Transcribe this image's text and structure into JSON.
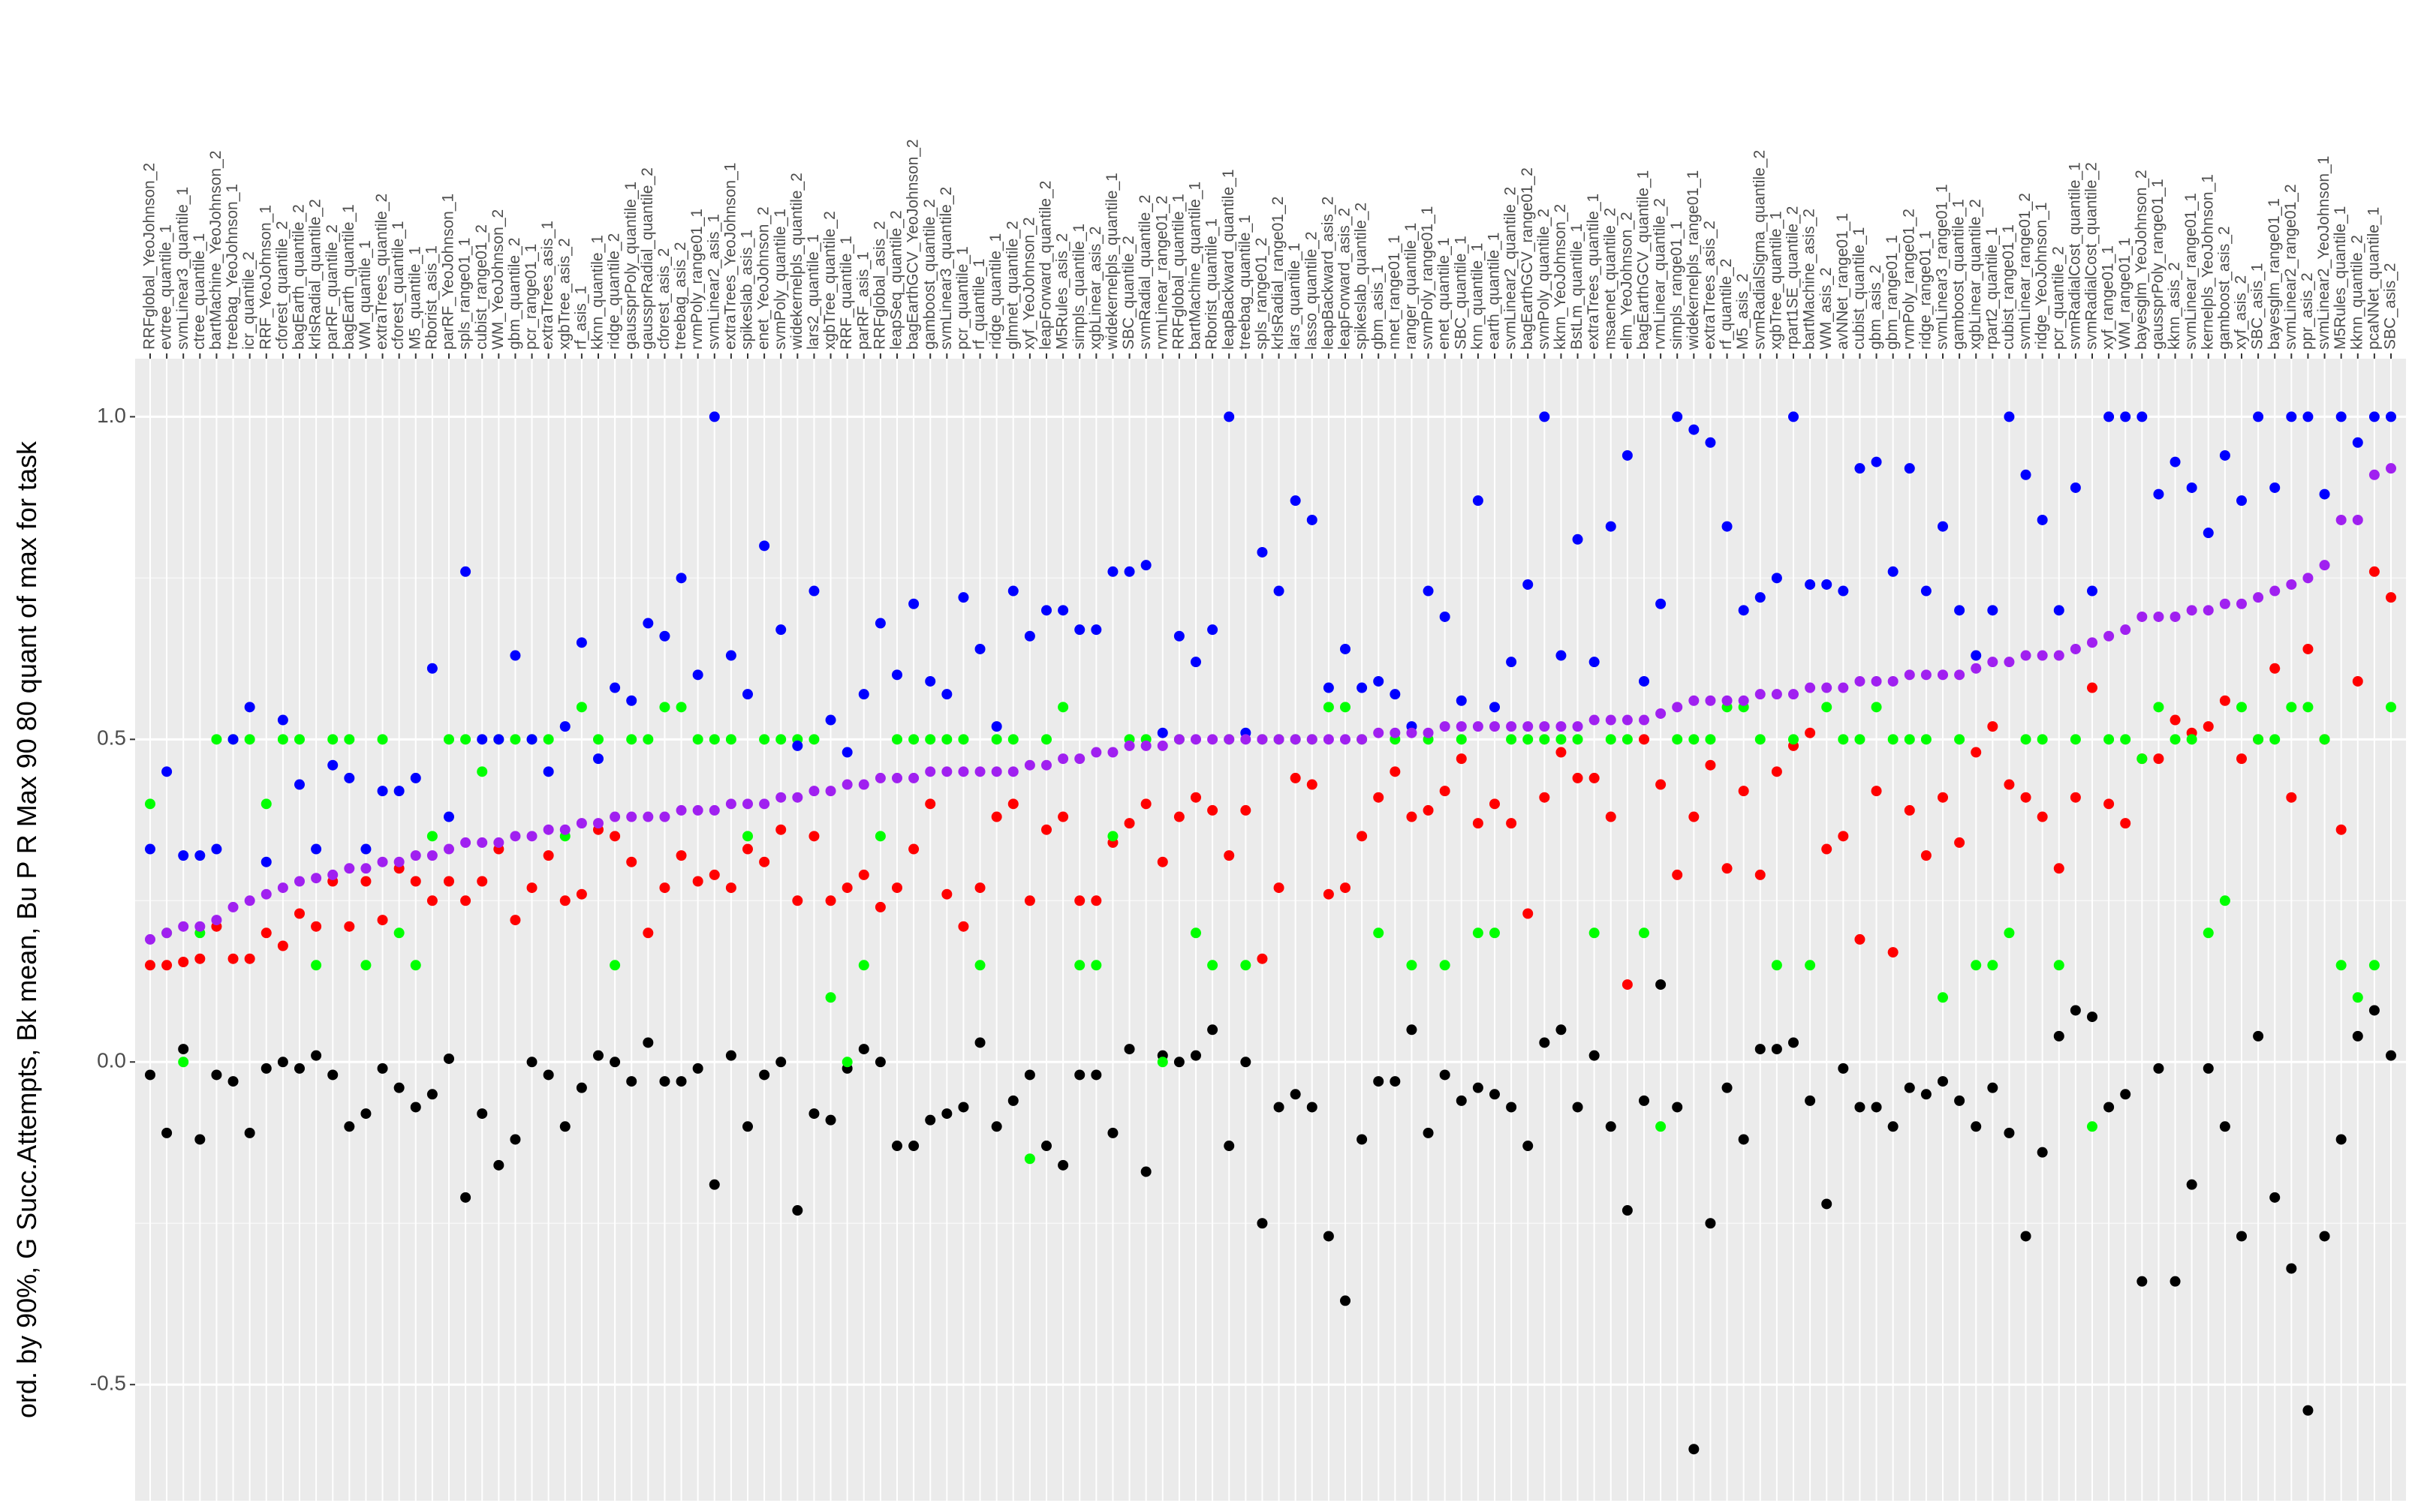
{
  "chart_data": {
    "type": "scatter",
    "y_label": "ord. by 90%, G Succ.Attempts, Bk mean, Bu P R Max 90 80 quant of max for task",
    "categories": [
      "RRFglobal_YeoJohnson_2",
      "evtree_quantile_1",
      "svmLinear3_quantile_1",
      "ctree_quantile_1",
      "bartMachine_YeoJohnson_2",
      "treebag_YeoJohnson_1",
      "icr_quantile_2",
      "RRF_YeoJohnson_1",
      "cforest_quantile_2",
      "bagEarth_quantile_2",
      "krlsRadial_quantile_2",
      "parRF_quantile_2",
      "bagEarth_quantile_1",
      "WM_quantile_1",
      "extraTrees_quantile_2",
      "cforest_quantile_1",
      "M5_quantile_1",
      "Rborist_asis_1",
      "parRF_YeoJohnson_1",
      "spls_range01_1",
      "cubist_range01_2",
      "WM_YeoJohnson_2",
      "gbm_quantile_2",
      "pcr_range01_1",
      "extraTrees_asis_1",
      "xgbTree_asis_2",
      "rf_asis_1",
      "kknn_quantile_1",
      "ridge_quantile_2",
      "gaussprPoly_quantile_1",
      "gaussprRadial_quantile_2",
      "cforest_asis_2",
      "treebag_asis_2",
      "rvmPoly_range01_1",
      "svmLinear2_asis_1",
      "extraTrees_YeoJohnson_1",
      "spikeslab_asis_1",
      "enet_YeoJohnson_2",
      "svmPoly_quantile_1",
      "widekernelpls_quantile_2",
      "lars2_quantile_1",
      "xgbTree_quantile_2",
      "RRF_quantile_1",
      "parRF_asis_1",
      "RRFglobal_asis_2",
      "leapSeq_quantile_2",
      "bagEarthGCV_YeoJohnson_2",
      "gamboost_quantile_2",
      "svmLinear3_quantile_2",
      "pcr_quantile_1",
      "rf_quantile_1",
      "ridge_quantile_1",
      "glmnet_quantile_2",
      "xyf_YeoJohnson_2",
      "leapForward_quantile_2",
      "M5Rules_asis_2",
      "simpls_quantile_1",
      "xgbLinear_asis_2",
      "widekernelpls_quantile_1",
      "SBC_quantile_2",
      "svmRadial_quantile_2",
      "rvmLinear_range01_2",
      "RRFglobal_quantile_1",
      "bartMachine_quantile_1",
      "Rborist_quantile_1",
      "leapBackward_quantile_1",
      "treebag_quantile_1",
      "spls_range01_2",
      "krlsRadial_range01_2",
      "lars_quantile_1",
      "lasso_quantile_2",
      "leapBackward_asis_2",
      "leapForward_asis_2",
      "spikeslab_quantile_2",
      "gbm_asis_1",
      "nnet_range01_1",
      "ranger_quantile_1",
      "svmPoly_range01_1",
      "enet_quantile_1",
      "SBC_quantile_1",
      "knn_quantile_1",
      "earth_quantile_1",
      "svmLinear2_quantile_2",
      "bagEarthGCV_range01_2",
      "svmPoly_quantile_2",
      "kknn_YeoJohnson_2",
      "BstLm_quantile_1",
      "extraTrees_quantile_1",
      "msaenet_quantile_2",
      "elm_YeoJohnson_2",
      "bagEarthGCV_quantile_1",
      "rvmLinear_quantile_2",
      "simpls_range01_1",
      "widekernelpls_range01_1",
      "extraTrees_asis_2",
      "rf_quantile_2",
      "M5_asis_2",
      "svmRadialSigma_quantile_2",
      "xgbTree_quantile_1",
      "rpart1SE_quantile_2",
      "bartMachine_asis_2",
      "WM_asis_2",
      "avNNet_range01_1",
      "cubist_quantile_1",
      "gbm_asis_2",
      "gbm_range01_1",
      "rvmPoly_range01_2",
      "ridge_range01_1",
      "svmLinear3_range01_1",
      "gamboost_quantile_1",
      "xgbLinear_quantile_2",
      "rpart2_quantile_1",
      "cubist_range01_1",
      "svmLinear_range01_2",
      "ridge_YeoJohnson_1",
      "pcr_quantile_2",
      "svmRadialCost_quantile_1",
      "svmRadialCost_quantile_2",
      "xyf_range01_1",
      "WM_range01_1",
      "bayesglm_YeoJohnson_2",
      "gaussprPoly_range01_1",
      "kknn_asis_2",
      "svmLinear_range01_1",
      "kernelpls_YeoJohnson_1",
      "gamboost_asis_2",
      "xyf_asis_2",
      "SBC_asis_1",
      "bayesglm_range01_1",
      "svmLinear2_range01_2",
      "ppr_asis_2",
      "svmLinear2_YeoJohnson_1",
      "M5Rules_quantile_1",
      "kknn_quantile_2",
      "pcaNNet_quantile_1",
      "SBC_asis_2"
    ],
    "series": [
      {
        "color": "#000000",
        "values": [
          -0.02,
          -0.11,
          0.02,
          -0.12,
          -0.02,
          -0.03,
          -0.11,
          -0.01,
          0.0,
          -0.01,
          0.01,
          -0.02,
          -0.1,
          -0.08,
          -0.01,
          -0.04,
          -0.07,
          -0.05,
          0.005,
          -0.21,
          -0.08,
          -0.16,
          -0.12,
          0.0,
          -0.02,
          -0.1,
          -0.04,
          0.01,
          0.0,
          -0.03,
          0.03,
          -0.03,
          -0.03,
          -0.01,
          -0.19,
          0.01,
          -0.1,
          -0.02,
          0.0,
          -0.23,
          -0.08,
          -0.09,
          -0.01,
          0.02,
          0.0,
          -0.13,
          -0.13,
          -0.09,
          -0.08,
          -0.07,
          0.03,
          -0.1,
          -0.06,
          -0.02,
          -0.13,
          -0.16,
          -0.02,
          -0.02,
          -0.11,
          0.02,
          -0.17,
          0.01,
          0.0,
          0.01,
          0.05,
          -0.13,
          0.0,
          -0.25,
          -0.07,
          -0.05,
          -0.07,
          -0.27,
          -0.37,
          -0.12,
          -0.03,
          -0.03,
          0.05,
          -0.11,
          -0.02,
          -0.06,
          -0.04,
          -0.05,
          -0.07,
          -0.13,
          0.03,
          0.05,
          -0.07,
          0.01,
          -0.1,
          -0.23,
          -0.06,
          0.12,
          -0.07,
          -0.6,
          -0.25,
          -0.04,
          -0.12,
          0.02,
          0.02,
          0.03,
          -0.06,
          -0.22,
          -0.01,
          -0.07,
          -0.07,
          -0.1,
          -0.04,
          -0.05,
          -0.03,
          -0.06,
          -0.1,
          -0.04,
          -0.11,
          -0.27,
          -0.14,
          0.04,
          0.08,
          0.07,
          -0.07,
          -0.05,
          -0.34,
          -0.01,
          -0.34,
          -0.19,
          -0.01,
          -0.1,
          -0.27,
          0.04,
          -0.21,
          -0.32,
          -0.54,
          -0.27,
          -0.12,
          0.04,
          0.08,
          0.01
        ]
      },
      {
        "color": "#ff0000",
        "values": [
          0.15,
          0.15,
          0.155,
          0.16,
          0.21,
          0.16,
          0.16,
          0.2,
          0.18,
          0.23,
          0.21,
          0.28,
          0.21,
          0.28,
          0.22,
          0.3,
          0.28,
          0.25,
          0.28,
          0.25,
          0.28,
          0.33,
          0.22,
          0.27,
          0.32,
          0.25,
          0.26,
          0.36,
          0.35,
          0.31,
          0.2,
          0.27,
          0.32,
          0.28,
          0.29,
          0.27,
          0.33,
          0.31,
          0.36,
          0.25,
          0.35,
          0.25,
          0.27,
          0.29,
          0.24,
          0.27,
          0.33,
          0.4,
          0.26,
          0.21,
          0.27,
          0.38,
          0.4,
          0.25,
          0.36,
          0.38,
          0.25,
          0.25,
          0.34,
          0.37,
          0.4,
          0.31,
          0.38,
          0.41,
          0.39,
          0.32,
          0.39,
          0.16,
          0.27,
          0.44,
          0.43,
          0.26,
          0.27,
          0.35,
          0.41,
          0.45,
          0.38,
          0.39,
          0.42,
          0.47,
          0.37,
          0.4,
          0.37,
          0.23,
          0.41,
          0.48,
          0.44,
          0.44,
          0.38,
          0.12,
          0.5,
          0.43,
          0.29,
          0.38,
          0.46,
          0.3,
          0.42,
          0.29,
          0.45,
          0.49,
          0.51,
          0.33,
          0.35,
          0.19,
          0.42,
          0.17,
          0.39,
          0.32,
          0.41,
          0.34,
          0.48,
          0.52,
          0.43,
          0.41,
          0.38,
          0.3,
          0.41,
          0.58,
          0.4,
          0.37,
          0.47,
          0.47,
          0.53,
          0.51,
          0.52,
          0.56,
          0.47,
          0.5,
          0.61,
          0.41,
          0.64,
          0.5,
          0.36,
          0.59,
          0.76,
          0.72
        ]
      },
      {
        "color": "#00ff00",
        "values": [
          0.4,
          0.2,
          0.0,
          0.2,
          0.5,
          0.5,
          0.5,
          0.4,
          0.5,
          0.5,
          0.15,
          0.5,
          0.5,
          0.15,
          0.5,
          0.2,
          0.15,
          0.35,
          0.5,
          0.5,
          0.45,
          0.5,
          0.5,
          0.5,
          0.5,
          0.35,
          0.55,
          0.5,
          0.15,
          0.5,
          0.5,
          0.55,
          0.55,
          0.5,
          0.5,
          0.5,
          0.35,
          0.5,
          0.5,
          0.5,
          0.5,
          0.1,
          0.0,
          0.15,
          0.35,
          0.5,
          0.5,
          0.5,
          0.5,
          0.5,
          0.15,
          0.5,
          0.5,
          -0.15,
          0.5,
          0.55,
          0.15,
          0.15,
          0.35,
          0.5,
          0.5,
          0.0,
          0.5,
          0.2,
          0.15,
          0.5,
          0.15,
          0.5,
          0.5,
          0.5,
          0.5,
          0.55,
          0.55,
          0.5,
          0.2,
          0.5,
          0.15,
          0.5,
          0.15,
          0.5,
          0.2,
          0.2,
          0.5,
          0.5,
          0.5,
          0.5,
          0.5,
          0.2,
          0.5,
          0.5,
          0.2,
          -0.1,
          0.5,
          0.5,
          0.5,
          0.55,
          0.55,
          0.5,
          0.15,
          0.5,
          0.15,
          0.55,
          0.5,
          0.5,
          0.55,
          0.5,
          0.5,
          0.5,
          0.1,
          0.5,
          0.15,
          0.15,
          0.2,
          0.5,
          0.5,
          0.15,
          0.5,
          -0.1,
          0.5,
          0.5,
          0.47,
          0.55,
          0.5,
          0.5,
          0.2,
          0.25,
          0.55,
          0.5,
          0.5,
          0.55,
          0.55,
          0.5,
          0.15,
          0.1,
          0.15,
          0.55
        ]
      },
      {
        "color": "#0000ff",
        "values": [
          0.33,
          0.45,
          0.32,
          0.32,
          0.33,
          0.5,
          0.55,
          0.31,
          0.53,
          0.43,
          0.33,
          0.46,
          0.44,
          0.33,
          0.42,
          0.42,
          0.44,
          0.61,
          0.38,
          0.76,
          0.5,
          0.5,
          0.63,
          0.5,
          0.45,
          0.52,
          0.65,
          0.47,
          0.58,
          0.56,
          0.68,
          0.66,
          0.75,
          0.6,
          1.0,
          0.63,
          0.57,
          0.8,
          0.67,
          0.49,
          0.73,
          0.53,
          0.48,
          0.57,
          0.68,
          0.6,
          0.71,
          0.59,
          0.57,
          0.72,
          0.64,
          0.52,
          0.73,
          0.66,
          0.7,
          0.7,
          0.67,
          0.67,
          0.76,
          0.76,
          0.77,
          0.51,
          0.66,
          0.62,
          0.67,
          1.0,
          0.51,
          0.79,
          0.73,
          0.87,
          0.84,
          0.58,
          0.64,
          0.58,
          0.59,
          0.57,
          0.52,
          0.73,
          0.69,
          0.56,
          0.87,
          0.55,
          0.62,
          0.74,
          1.0,
          0.63,
          0.81,
          0.62,
          0.83,
          0.94,
          0.59,
          0.71,
          1.0,
          0.98,
          0.96,
          0.83,
          0.7,
          0.72,
          0.75,
          1.0,
          0.74,
          0.74,
          0.73,
          0.92,
          0.93,
          0.76,
          0.92,
          0.73,
          0.83,
          0.7,
          0.63,
          0.7,
          1.0,
          0.91,
          0.84,
          0.7,
          0.89,
          0.73,
          1.0,
          1.0,
          1.0,
          0.88,
          0.93,
          0.89,
          0.82,
          0.94,
          0.87,
          1.0,
          0.89,
          1.0,
          1.0,
          0.88,
          1.0,
          0.96,
          1.0,
          1.0
        ]
      },
      {
        "color": "#a020f0",
        "values": [
          0.19,
          0.2,
          0.21,
          0.21,
          0.22,
          0.24,
          0.25,
          0.26,
          0.27,
          0.28,
          0.285,
          0.29,
          0.3,
          0.3,
          0.31,
          0.31,
          0.32,
          0.32,
          0.33,
          0.34,
          0.34,
          0.34,
          0.35,
          0.35,
          0.36,
          0.36,
          0.37,
          0.37,
          0.38,
          0.38,
          0.38,
          0.38,
          0.39,
          0.39,
          0.39,
          0.4,
          0.4,
          0.4,
          0.41,
          0.41,
          0.42,
          0.42,
          0.43,
          0.43,
          0.44,
          0.44,
          0.44,
          0.45,
          0.45,
          0.45,
          0.45,
          0.45,
          0.45,
          0.46,
          0.46,
          0.47,
          0.47,
          0.48,
          0.48,
          0.49,
          0.49,
          0.49,
          0.5,
          0.5,
          0.5,
          0.5,
          0.5,
          0.5,
          0.5,
          0.5,
          0.5,
          0.5,
          0.5,
          0.5,
          0.51,
          0.51,
          0.51,
          0.51,
          0.52,
          0.52,
          0.52,
          0.52,
          0.52,
          0.52,
          0.52,
          0.52,
          0.52,
          0.53,
          0.53,
          0.53,
          0.53,
          0.54,
          0.55,
          0.56,
          0.56,
          0.56,
          0.56,
          0.57,
          0.57,
          0.57,
          0.58,
          0.58,
          0.58,
          0.59,
          0.59,
          0.59,
          0.6,
          0.6,
          0.6,
          0.6,
          0.61,
          0.62,
          0.62,
          0.63,
          0.63,
          0.63,
          0.64,
          0.65,
          0.66,
          0.67,
          0.69,
          0.69,
          0.69,
          0.7,
          0.7,
          0.71,
          0.71,
          0.72,
          0.73,
          0.74,
          0.75,
          0.77,
          0.84,
          0.84,
          0.91,
          0.92
        ]
      }
    ],
    "ylim": [
      -0.68,
      1.09
    ],
    "yticks": [
      {
        "value": -0.5,
        "label": "-0.5"
      },
      {
        "value": 0,
        "label": "0.0"
      },
      {
        "value": 0.5,
        "label": "0.5"
      },
      {
        "value": 1,
        "label": "1.0"
      }
    ],
    "grid": true
  }
}
